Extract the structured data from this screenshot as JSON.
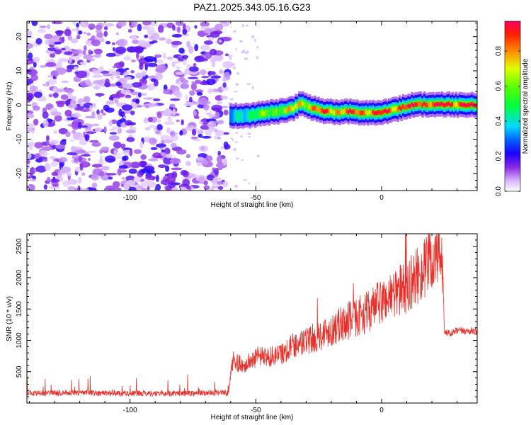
{
  "title": "PAZ1.2025.343.05.16.G23",
  "colors": {
    "snr_line": "#e8302a",
    "axes": "#000000",
    "background": "#ffffff"
  },
  "chart_data": [
    {
      "type": "heatmap",
      "title": "PAZ1.2025.343.05.16.G23",
      "xlabel": "Height of straight line (km)",
      "ylabel": "Frequency (Hz)",
      "xlim": [
        -141,
        38
      ],
      "ylim": [
        -25,
        24.5
      ],
      "x_ticks": [
        -100,
        -50,
        0
      ],
      "y_ticks": [
        -20,
        -10,
        0,
        10,
        20
      ],
      "noise_region_x": [
        -141,
        -61
      ],
      "noise_amplitude_range": [
        0.0,
        0.25
      ],
      "signal_ridge": {
        "x": [
          -60,
          -55,
          -50,
          -45,
          -40,
          -35,
          -32,
          -28,
          -24,
          -20,
          -16,
          -12,
          -8,
          -4,
          0,
          4,
          8,
          12,
          16,
          20,
          25,
          30,
          38
        ],
        "frequency": [
          -3,
          -3.2,
          -2.8,
          -2.2,
          -1.8,
          -1.0,
          0.5,
          -0.8,
          -1.6,
          -2.0,
          -2.1,
          -1.8,
          -2.2,
          -2.3,
          -2.0,
          -1.5,
          -0.8,
          0.0,
          0.2,
          0.1,
          0.1,
          0.1,
          0.1
        ],
        "amplitude": [
          0.3,
          0.45,
          0.5,
          0.6,
          0.65,
          0.7,
          0.75,
          0.8,
          0.82,
          0.85,
          0.85,
          0.85,
          0.88,
          0.9,
          0.9,
          0.9,
          0.92,
          0.95,
          0.97,
          0.97,
          0.97,
          0.97,
          0.97
        ]
      },
      "colorbar": {
        "label": "Normalized spectral amplitude",
        "range": [
          0.0,
          0.97
        ],
        "ticks": [
          "0.0",
          "0.2",
          "0.4",
          "0.6",
          "0.8"
        ],
        "tick_values": [
          0.0,
          0.2,
          0.4,
          0.6,
          0.8
        ]
      }
    },
    {
      "type": "line",
      "title": "",
      "xlabel": "Height of straight line (km)",
      "ylabel": "SNR (10 * v/v)",
      "xlim": [
        -141,
        38
      ],
      "ylim": [
        0,
        2700
      ],
      "x_ticks": [
        -100,
        -50,
        0
      ],
      "y_ticks": [
        500,
        1000,
        1500,
        2000,
        2500
      ],
      "series": [
        {
          "name": "SNR",
          "x": [
            -141,
            -120,
            -100,
            -80,
            -61,
            -59,
            -55,
            -50,
            -45,
            -40,
            -35,
            -30,
            -25,
            -20,
            -15,
            -10,
            -5,
            0,
            5,
            10,
            15,
            20,
            24,
            25,
            27,
            30,
            35,
            38
          ],
          "values": [
            150,
            160,
            150,
            150,
            160,
            700,
            600,
            750,
            750,
            800,
            950,
            1000,
            1100,
            1200,
            1300,
            1400,
            1500,
            1650,
            1800,
            1900,
            2100,
            2300,
            2450,
            1150,
            1100,
            1150,
            1150,
            1150
          ]
        }
      ]
    }
  ]
}
